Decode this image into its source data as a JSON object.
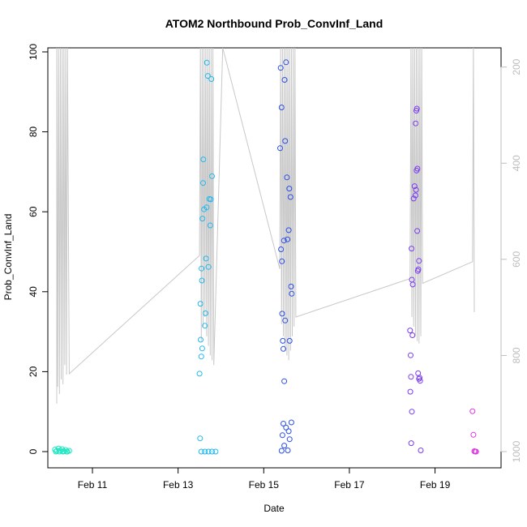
{
  "chart_data": {
    "type": "scatter",
    "title": "ATOM2 Northbound Prob_ConvInf_Land",
    "xlabel": "Date",
    "ylabel": "Prob_ConvInf_Land",
    "xlim": [
      "2020-02-09T23:00",
      "2020-02-20T13:00"
    ],
    "ylim": [
      0,
      100
    ],
    "x_ticks": [
      "Feb 11",
      "Feb 13",
      "Feb 15",
      "Feb 17",
      "Feb 19"
    ],
    "x_tick_dates": [
      "2020-02-11",
      "2020-02-13",
      "2020-02-15",
      "2020-02-17",
      "2020-02-19"
    ],
    "y_ticks": [
      0,
      20,
      40,
      60,
      80,
      100
    ],
    "secondary_axis": {
      "side": "right",
      "inverted": true,
      "range": [
        1000,
        160
      ],
      "ticks": [
        200,
        400,
        600,
        800,
        1000
      ],
      "color": "#bdbdbd"
    },
    "grid": false,
    "colors": {
      "line": "#c8c8c8",
      "axis": "#000000",
      "right_axis": "#bdbdbd"
    },
    "line_series": [
      [
        "2020-02-10T04:00",
        900
      ],
      [
        "2020-02-10T04:00",
        140
      ],
      [
        "2020-02-10T04:30",
        865
      ],
      [
        "2020-02-10T05:00",
        140
      ],
      [
        "2020-02-10T05:30",
        880
      ],
      [
        "2020-02-10T06:00",
        140
      ],
      [
        "2020-02-10T06:30",
        850
      ],
      [
        "2020-02-10T07:00",
        140
      ],
      [
        "2020-02-10T07:30",
        860
      ],
      [
        "2020-02-10T08:00",
        140
      ],
      [
        "2020-02-10T08:30",
        820
      ],
      [
        "2020-02-10T09:00",
        140
      ],
      [
        "2020-02-10T09:30",
        840
      ],
      [
        "2020-02-10T10:00",
        140
      ],
      [
        "2020-02-10T11:00",
        838
      ],
      [
        "2020-02-13T12:00",
        592
      ],
      [
        "2020-02-13T12:30",
        140
      ],
      [
        "2020-02-13T13:00",
        770
      ],
      [
        "2020-02-13T13:30",
        140
      ],
      [
        "2020-02-13T14:00",
        740
      ],
      [
        "2020-02-13T14:30",
        140
      ],
      [
        "2020-02-13T15:00",
        720
      ],
      [
        "2020-02-13T15:30",
        140
      ],
      [
        "2020-02-13T16:00",
        760
      ],
      [
        "2020-02-13T16:30",
        140
      ],
      [
        "2020-02-13T17:00",
        780
      ],
      [
        "2020-02-13T17:30",
        140
      ],
      [
        "2020-02-13T18:00",
        800
      ],
      [
        "2020-02-13T18:30",
        140
      ],
      [
        "2020-02-13T19:00",
        810
      ],
      [
        "2020-02-13T19:30",
        140
      ],
      [
        "2020-02-13T20:00",
        820
      ],
      [
        "2020-02-14T01:00",
        140
      ],
      [
        "2020-02-15T09:00",
        620
      ],
      [
        "2020-02-15T09:30",
        140
      ],
      [
        "2020-02-15T10:00",
        735
      ],
      [
        "2020-02-15T10:30",
        140
      ],
      [
        "2020-02-15T11:00",
        760
      ],
      [
        "2020-02-15T11:30",
        140
      ],
      [
        "2020-02-15T12:00",
        790
      ],
      [
        "2020-02-15T12:30",
        140
      ],
      [
        "2020-02-15T13:00",
        800
      ],
      [
        "2020-02-15T13:30",
        140
      ],
      [
        "2020-02-15T14:00",
        810
      ],
      [
        "2020-02-15T14:30",
        140
      ],
      [
        "2020-02-15T15:00",
        790
      ],
      [
        "2020-02-15T15:30",
        140
      ],
      [
        "2020-02-15T16:00",
        760
      ],
      [
        "2020-02-15T16:30",
        140
      ],
      [
        "2020-02-15T17:00",
        740
      ],
      [
        "2020-02-15T17:30",
        140
      ],
      [
        "2020-02-15T18:00",
        720
      ],
      [
        "2020-02-18T10:00",
        640
      ],
      [
        "2020-02-18T10:30",
        140
      ],
      [
        "2020-02-18T11:00",
        720
      ],
      [
        "2020-02-18T11:30",
        140
      ],
      [
        "2020-02-18T12:00",
        740
      ],
      [
        "2020-02-18T12:30",
        140
      ],
      [
        "2020-02-18T13:00",
        760
      ],
      [
        "2020-02-18T13:30",
        140
      ],
      [
        "2020-02-18T14:00",
        770
      ],
      [
        "2020-02-18T14:30",
        140
      ],
      [
        "2020-02-18T15:00",
        775
      ],
      [
        "2020-02-18T15:30",
        140
      ],
      [
        "2020-02-18T16:00",
        760
      ],
      [
        "2020-02-18T16:30",
        140
      ],
      [
        "2020-02-18T17:00",
        650
      ],
      [
        "2020-02-19T21:00",
        605
      ],
      [
        "2020-02-19T21:30",
        140
      ],
      [
        "2020-02-19T22:00",
        710
      ]
    ],
    "points": [
      {
        "x": "2020-02-10T03:00",
        "y": 0.5,
        "color": "#1ee6c1"
      },
      {
        "x": "2020-02-10T04:00",
        "y": 0.2,
        "color": "#1ee6c1"
      },
      {
        "x": "2020-02-10T05:00",
        "y": 0.8,
        "color": "#1ee6c1"
      },
      {
        "x": "2020-02-10T06:00",
        "y": 0.3,
        "color": "#1ee6c1"
      },
      {
        "x": "2020-02-10T07:00",
        "y": 0.6,
        "color": "#1ee6c1"
      },
      {
        "x": "2020-02-10T08:00",
        "y": 0.1,
        "color": "#1ee6c1"
      },
      {
        "x": "2020-02-10T09:00",
        "y": 0.4,
        "color": "#1ee6c1"
      },
      {
        "x": "2020-02-10T10:00",
        "y": 0.0,
        "color": "#1ee6c1"
      },
      {
        "x": "2020-02-10T11:00",
        "y": 0.2,
        "color": "#1ee6c1"
      },
      {
        "x": "2020-02-10T03:30",
        "y": 0.0,
        "color": "#1ee6c1"
      },
      {
        "x": "2020-02-10T05:30",
        "y": 0.0,
        "color": "#1ee6c1"
      },
      {
        "x": "2020-02-10T07:30",
        "y": 0.0,
        "color": "#1ee6c1"
      },
      {
        "x": "2020-02-10T09:30",
        "y": 0.0,
        "color": "#1ee6c1"
      },
      {
        "x": "2020-02-13T12:00",
        "y": 19.5,
        "color": "#22b8ee"
      },
      {
        "x": "2020-02-13T12:30",
        "y": 37,
        "color": "#22b8ee"
      },
      {
        "x": "2020-02-13T12:40",
        "y": 28,
        "color": "#22b8ee"
      },
      {
        "x": "2020-02-13T13:00",
        "y": 23.8,
        "color": "#22b8ee"
      },
      {
        "x": "2020-02-13T13:30",
        "y": 25.8,
        "color": "#22b8ee"
      },
      {
        "x": "2020-02-13T13:10",
        "y": 45.8,
        "color": "#22b8ee"
      },
      {
        "x": "2020-02-13T13:20",
        "y": 42.8,
        "color": "#22b8ee"
      },
      {
        "x": "2020-02-13T13:40",
        "y": 58.3,
        "color": "#22b8ee"
      },
      {
        "x": "2020-02-13T14:00",
        "y": 67.2,
        "color": "#22b8ee"
      },
      {
        "x": "2020-02-13T14:10",
        "y": 73.1,
        "color": "#22b8ee"
      },
      {
        "x": "2020-02-13T14:30",
        "y": 60.6,
        "color": "#22b8ee"
      },
      {
        "x": "2020-02-13T15:00",
        "y": 31.5,
        "color": "#22b8ee"
      },
      {
        "x": "2020-02-13T15:20",
        "y": 34.6,
        "color": "#22b8ee"
      },
      {
        "x": "2020-02-13T15:40",
        "y": 48.3,
        "color": "#22b8ee"
      },
      {
        "x": "2020-02-13T16:00",
        "y": 61.1,
        "color": "#22b8ee"
      },
      {
        "x": "2020-02-13T16:10",
        "y": 97.3,
        "color": "#22b8ee"
      },
      {
        "x": "2020-02-13T16:40",
        "y": 94,
        "color": "#22b8ee"
      },
      {
        "x": "2020-02-13T17:00",
        "y": 46.2,
        "color": "#22b8ee"
      },
      {
        "x": "2020-02-13T17:30",
        "y": 63.2,
        "color": "#22b8ee"
      },
      {
        "x": "2020-02-13T18:00",
        "y": 56.6,
        "color": "#22b8ee"
      },
      {
        "x": "2020-02-13T18:20",
        "y": 63.1,
        "color": "#22b8ee"
      },
      {
        "x": "2020-02-13T18:40",
        "y": 93.2,
        "color": "#22b8ee"
      },
      {
        "x": "2020-02-13T19:00",
        "y": 68.9,
        "color": "#22b8ee"
      },
      {
        "x": "2020-02-13T12:20",
        "y": 3.3,
        "color": "#22b8ee"
      },
      {
        "x": "2020-02-13T13:00",
        "y": 0,
        "color": "#22b8ee"
      },
      {
        "x": "2020-02-13T15:00",
        "y": 0,
        "color": "#22b8ee"
      },
      {
        "x": "2020-02-13T17:00",
        "y": 0,
        "color": "#22b8ee"
      },
      {
        "x": "2020-02-13T19:00",
        "y": 0,
        "color": "#22b8ee"
      },
      {
        "x": "2020-02-13T21:00",
        "y": 0,
        "color": "#22b8ee"
      },
      {
        "x": "2020-02-15T09:30",
        "y": 96,
        "color": "#2a4ee8"
      },
      {
        "x": "2020-02-15T09:10",
        "y": 75.9,
        "color": "#2a4ee8"
      },
      {
        "x": "2020-02-15T10:00",
        "y": 86.1,
        "color": "#2a4ee8"
      },
      {
        "x": "2020-02-15T09:40",
        "y": 50.6,
        "color": "#2a4ee8"
      },
      {
        "x": "2020-02-15T10:10",
        "y": 47.6,
        "color": "#2a4ee8"
      },
      {
        "x": "2020-02-15T10:20",
        "y": 34.5,
        "color": "#2a4ee8"
      },
      {
        "x": "2020-02-15T10:40",
        "y": 27.7,
        "color": "#2a4ee8"
      },
      {
        "x": "2020-02-15T11:00",
        "y": 25.7,
        "color": "#2a4ee8"
      },
      {
        "x": "2020-02-15T11:30",
        "y": 17.6,
        "color": "#2a4ee8"
      },
      {
        "x": "2020-02-15T11:20",
        "y": 52.8,
        "color": "#2a4ee8"
      },
      {
        "x": "2020-02-15T11:40",
        "y": 93,
        "color": "#2a4ee8"
      },
      {
        "x": "2020-02-15T12:00",
        "y": 77.7,
        "color": "#2a4ee8"
      },
      {
        "x": "2020-02-15T12:30",
        "y": 97.4,
        "color": "#2a4ee8"
      },
      {
        "x": "2020-02-15T12:00",
        "y": 32.8,
        "color": "#2a4ee8"
      },
      {
        "x": "2020-02-15T13:00",
        "y": 68.6,
        "color": "#2a4ee8"
      },
      {
        "x": "2020-02-15T13:20",
        "y": 53.1,
        "color": "#2a4ee8"
      },
      {
        "x": "2020-02-15T14:00",
        "y": 55.4,
        "color": "#2a4ee8"
      },
      {
        "x": "2020-02-15T14:20",
        "y": 65.8,
        "color": "#2a4ee8"
      },
      {
        "x": "2020-02-15T14:30",
        "y": 27.7,
        "color": "#2a4ee8"
      },
      {
        "x": "2020-02-15T15:00",
        "y": 63.7,
        "color": "#2a4ee8"
      },
      {
        "x": "2020-02-15T15:20",
        "y": 41.3,
        "color": "#2a4ee8"
      },
      {
        "x": "2020-02-15T15:40",
        "y": 39.5,
        "color": "#2a4ee8"
      },
      {
        "x": "2020-02-15T10:00",
        "y": 0.2,
        "color": "#2a4ee8"
      },
      {
        "x": "2020-02-15T11:00",
        "y": 7,
        "color": "#2a4ee8"
      },
      {
        "x": "2020-02-15T10:30",
        "y": 4.1,
        "color": "#2a4ee8"
      },
      {
        "x": "2020-02-15T11:30",
        "y": 1.5,
        "color": "#2a4ee8"
      },
      {
        "x": "2020-02-15T12:30",
        "y": 6,
        "color": "#2a4ee8"
      },
      {
        "x": "2020-02-15T13:30",
        "y": 0.3,
        "color": "#2a4ee8"
      },
      {
        "x": "2020-02-15T14:00",
        "y": 5.1,
        "color": "#2a4ee8"
      },
      {
        "x": "2020-02-15T14:30",
        "y": 3.1,
        "color": "#2a4ee8"
      },
      {
        "x": "2020-02-15T15:30",
        "y": 7.3,
        "color": "#2a4ee8"
      },
      {
        "x": "2020-02-18T10:00",
        "y": 30.3,
        "color": "#7b3cf0"
      },
      {
        "x": "2020-02-18T10:20",
        "y": 24.1,
        "color": "#7b3cf0"
      },
      {
        "x": "2020-02-18T10:10",
        "y": 15,
        "color": "#7b3cf0"
      },
      {
        "x": "2020-02-18T10:40",
        "y": 2.1,
        "color": "#7b3cf0"
      },
      {
        "x": "2020-02-18T11:00",
        "y": 10,
        "color": "#7b3cf0"
      },
      {
        "x": "2020-02-18T10:30",
        "y": 18.7,
        "color": "#7b3cf0"
      },
      {
        "x": "2020-02-18T11:20",
        "y": 29.1,
        "color": "#7b3cf0"
      },
      {
        "x": "2020-02-18T11:00",
        "y": 43,
        "color": "#7b3cf0"
      },
      {
        "x": "2020-02-18T11:30",
        "y": 41.8,
        "color": "#7b3cf0"
      },
      {
        "x": "2020-02-18T10:50",
        "y": 50.8,
        "color": "#7b3cf0"
      },
      {
        "x": "2020-02-18T12:00",
        "y": 63.3,
        "color": "#7b3cf0"
      },
      {
        "x": "2020-02-18T12:30",
        "y": 66.4,
        "color": "#7b3cf0"
      },
      {
        "x": "2020-02-18T13:00",
        "y": 64.1,
        "color": "#7b3cf0"
      },
      {
        "x": "2020-02-18T13:20",
        "y": 65.5,
        "color": "#7b3cf0"
      },
      {
        "x": "2020-02-18T13:40",
        "y": 70.3,
        "color": "#7b3cf0"
      },
      {
        "x": "2020-02-18T14:10",
        "y": 70.8,
        "color": "#7b3cf0"
      },
      {
        "x": "2020-02-18T13:30",
        "y": 85.3,
        "color": "#7b3cf0"
      },
      {
        "x": "2020-02-18T13:50",
        "y": 85.8,
        "color": "#7b3cf0"
      },
      {
        "x": "2020-02-18T13:10",
        "y": 82.1,
        "color": "#7b3cf0"
      },
      {
        "x": "2020-02-18T14:00",
        "y": 55.2,
        "color": "#7b3cf0"
      },
      {
        "x": "2020-02-18T14:20",
        "y": 45.2,
        "color": "#7b3cf0"
      },
      {
        "x": "2020-02-18T14:40",
        "y": 45.6,
        "color": "#7b3cf0"
      },
      {
        "x": "2020-02-18T15:00",
        "y": 47.7,
        "color": "#7b3cf0"
      },
      {
        "x": "2020-02-18T14:30",
        "y": 19.6,
        "color": "#7b3cf0"
      },
      {
        "x": "2020-02-18T15:00",
        "y": 18.2,
        "color": "#7b3cf0"
      },
      {
        "x": "2020-02-18T15:20",
        "y": 18.5,
        "color": "#7b3cf0"
      },
      {
        "x": "2020-02-18T15:40",
        "y": 17.7,
        "color": "#7b3cf0"
      },
      {
        "x": "2020-02-18T16:00",
        "y": 0.3,
        "color": "#7b3cf0"
      },
      {
        "x": "2020-02-19T21:00",
        "y": 10.1,
        "color": "#de34e2"
      },
      {
        "x": "2020-02-19T21:30",
        "y": 4.2,
        "color": "#de34e2"
      },
      {
        "x": "2020-02-19T22:00",
        "y": 0.1,
        "color": "#de34e2"
      },
      {
        "x": "2020-02-19T22:30",
        "y": 0.0,
        "color": "#de34e2"
      },
      {
        "x": "2020-02-19T23:00",
        "y": 0.0,
        "color": "#de34e2"
      }
    ]
  }
}
